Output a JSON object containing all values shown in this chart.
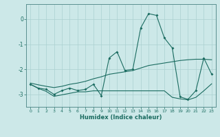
{
  "title": "",
  "xlabel": "Humidex (Indice chaleur)",
  "ylabel": "",
  "bg_color": "#cce8e8",
  "line_color": "#1a6b60",
  "xlim": [
    -0.5,
    23.5
  ],
  "ylim": [
    -3.5,
    0.6
  ],
  "x": [
    0,
    1,
    2,
    3,
    4,
    5,
    6,
    7,
    8,
    9,
    10,
    11,
    12,
    13,
    14,
    15,
    16,
    17,
    18,
    19,
    20,
    21,
    22,
    23
  ],
  "y_main": [
    -2.6,
    -2.75,
    -2.8,
    -3.0,
    -2.85,
    -2.75,
    -2.85,
    -2.8,
    -2.6,
    -3.05,
    -1.55,
    -1.3,
    -2.05,
    -2.0,
    -0.35,
    0.22,
    0.15,
    -0.75,
    -1.15,
    -3.1,
    -3.2,
    -2.85,
    -1.55,
    -2.2
  ],
  "y_upper": [
    -2.55,
    -2.62,
    -2.68,
    -2.73,
    -2.68,
    -2.6,
    -2.55,
    -2.48,
    -2.38,
    -2.3,
    -2.2,
    -2.15,
    -2.1,
    -2.05,
    -1.95,
    -1.85,
    -1.8,
    -1.75,
    -1.7,
    -1.65,
    -1.62,
    -1.6,
    -1.6,
    -1.62
  ],
  "y_lower": [
    -2.6,
    -2.76,
    -2.88,
    -3.08,
    -3.02,
    -2.96,
    -2.9,
    -2.9,
    -2.86,
    -2.86,
    -2.86,
    -2.86,
    -2.86,
    -2.86,
    -2.86,
    -2.86,
    -2.86,
    -2.86,
    -3.12,
    -3.18,
    -3.22,
    -3.12,
    -2.86,
    -2.58
  ],
  "yticks": [
    0,
    -1,
    -2,
    -3
  ],
  "xticks": [
    0,
    1,
    2,
    3,
    4,
    5,
    6,
    7,
    8,
    9,
    10,
    11,
    12,
    13,
    14,
    15,
    16,
    17,
    18,
    19,
    20,
    21,
    22,
    23
  ],
  "grid_color": "#aad0d0",
  "spine_color": "#5a9090"
}
